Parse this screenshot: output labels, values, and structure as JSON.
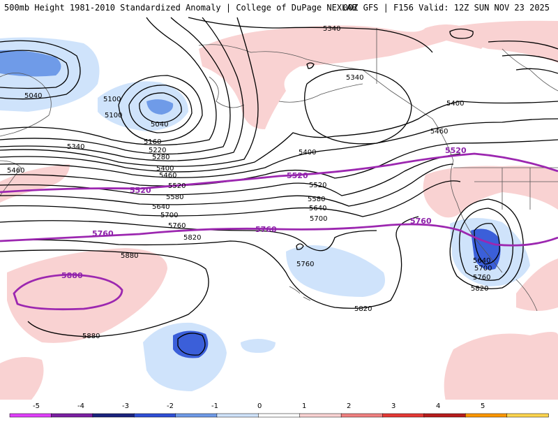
{
  "header": {
    "title_left": "500mb Height 1981-2010 Standardized Anomaly | College of DuPage NEXLAB",
    "title_right": "00Z GFS | F156 Valid: 12Z SUN NOV 23 2025"
  },
  "colors": {
    "contour": "#000000",
    "highlight_contour": "#9c27b0",
    "coast": "#555555",
    "pos1": "#f9d2d2",
    "neg1": "#cfe3fb",
    "neg2": "#6f9be8",
    "neg3": "#3b5fd9"
  },
  "contour_labels": [
    {
      "id": "5340-top",
      "text": "5340"
    },
    {
      "id": "5340-mid",
      "text": "5340"
    },
    {
      "id": "5040-left",
      "text": "5040"
    },
    {
      "id": "5100-a",
      "text": "5100"
    },
    {
      "id": "5100-b",
      "text": "5100"
    },
    {
      "id": "5040-low",
      "text": "5040"
    },
    {
      "id": "5160",
      "text": "5160"
    },
    {
      "id": "5220",
      "text": "5220"
    },
    {
      "id": "5280",
      "text": "5280"
    },
    {
      "id": "5340-left",
      "text": "5340"
    },
    {
      "id": "5400-left",
      "text": "5400"
    },
    {
      "id": "5460-left",
      "text": "5460"
    },
    {
      "id": "5460-left2",
      "text": "5460"
    },
    {
      "id": "5520-black",
      "text": "5520"
    },
    {
      "id": "5580",
      "text": "5580"
    },
    {
      "id": "5640",
      "text": "5640"
    },
    {
      "id": "5700",
      "text": "5700"
    },
    {
      "id": "5760-black",
      "text": "5760"
    },
    {
      "id": "5820",
      "text": "5820"
    },
    {
      "id": "5880-top",
      "text": "5880"
    },
    {
      "id": "5880-bot",
      "text": "5880"
    },
    {
      "id": "5400-mid",
      "text": "5400"
    },
    {
      "id": "5520-mid",
      "text": "5520"
    },
    {
      "id": "5580-mid",
      "text": "5580"
    },
    {
      "id": "5640-mid",
      "text": "5640"
    },
    {
      "id": "5700-mid",
      "text": "5700"
    },
    {
      "id": "5760-mid",
      "text": "5760"
    },
    {
      "id": "5820-mid",
      "text": "5820"
    },
    {
      "id": "5400-right",
      "text": "5400"
    },
    {
      "id": "5460-right",
      "text": "5460"
    },
    {
      "id": "5640-low",
      "text": "5640"
    },
    {
      "id": "5700-low",
      "text": "5700"
    },
    {
      "id": "5760-low",
      "text": "5760"
    },
    {
      "id": "5820-low",
      "text": "5820"
    }
  ],
  "highlight_labels": [
    {
      "id": "p5520-left",
      "text": "5520"
    },
    {
      "id": "p5520-mid",
      "text": "5520"
    },
    {
      "id": "p5520-right",
      "text": "5520"
    },
    {
      "id": "p5760-left",
      "text": "5760"
    },
    {
      "id": "p5760-mid",
      "text": "5760"
    },
    {
      "id": "p5760-right",
      "text": "5760"
    },
    {
      "id": "p5880",
      "text": "5880"
    }
  ],
  "legend": {
    "ticks": [
      "-5",
      "-4",
      "-3",
      "-2",
      "-1",
      "0",
      "1",
      "2",
      "3",
      "4",
      "5"
    ],
    "colors": [
      "#e040fb",
      "#7b1fa2",
      "#1a237e",
      "#2f4fd6",
      "#6f9be8",
      "#cfe3fb",
      "#ffffff",
      "#f9d2d2",
      "#f08080",
      "#e53935",
      "#b71c1c",
      "#ff9800",
      "#ffd54f"
    ]
  }
}
